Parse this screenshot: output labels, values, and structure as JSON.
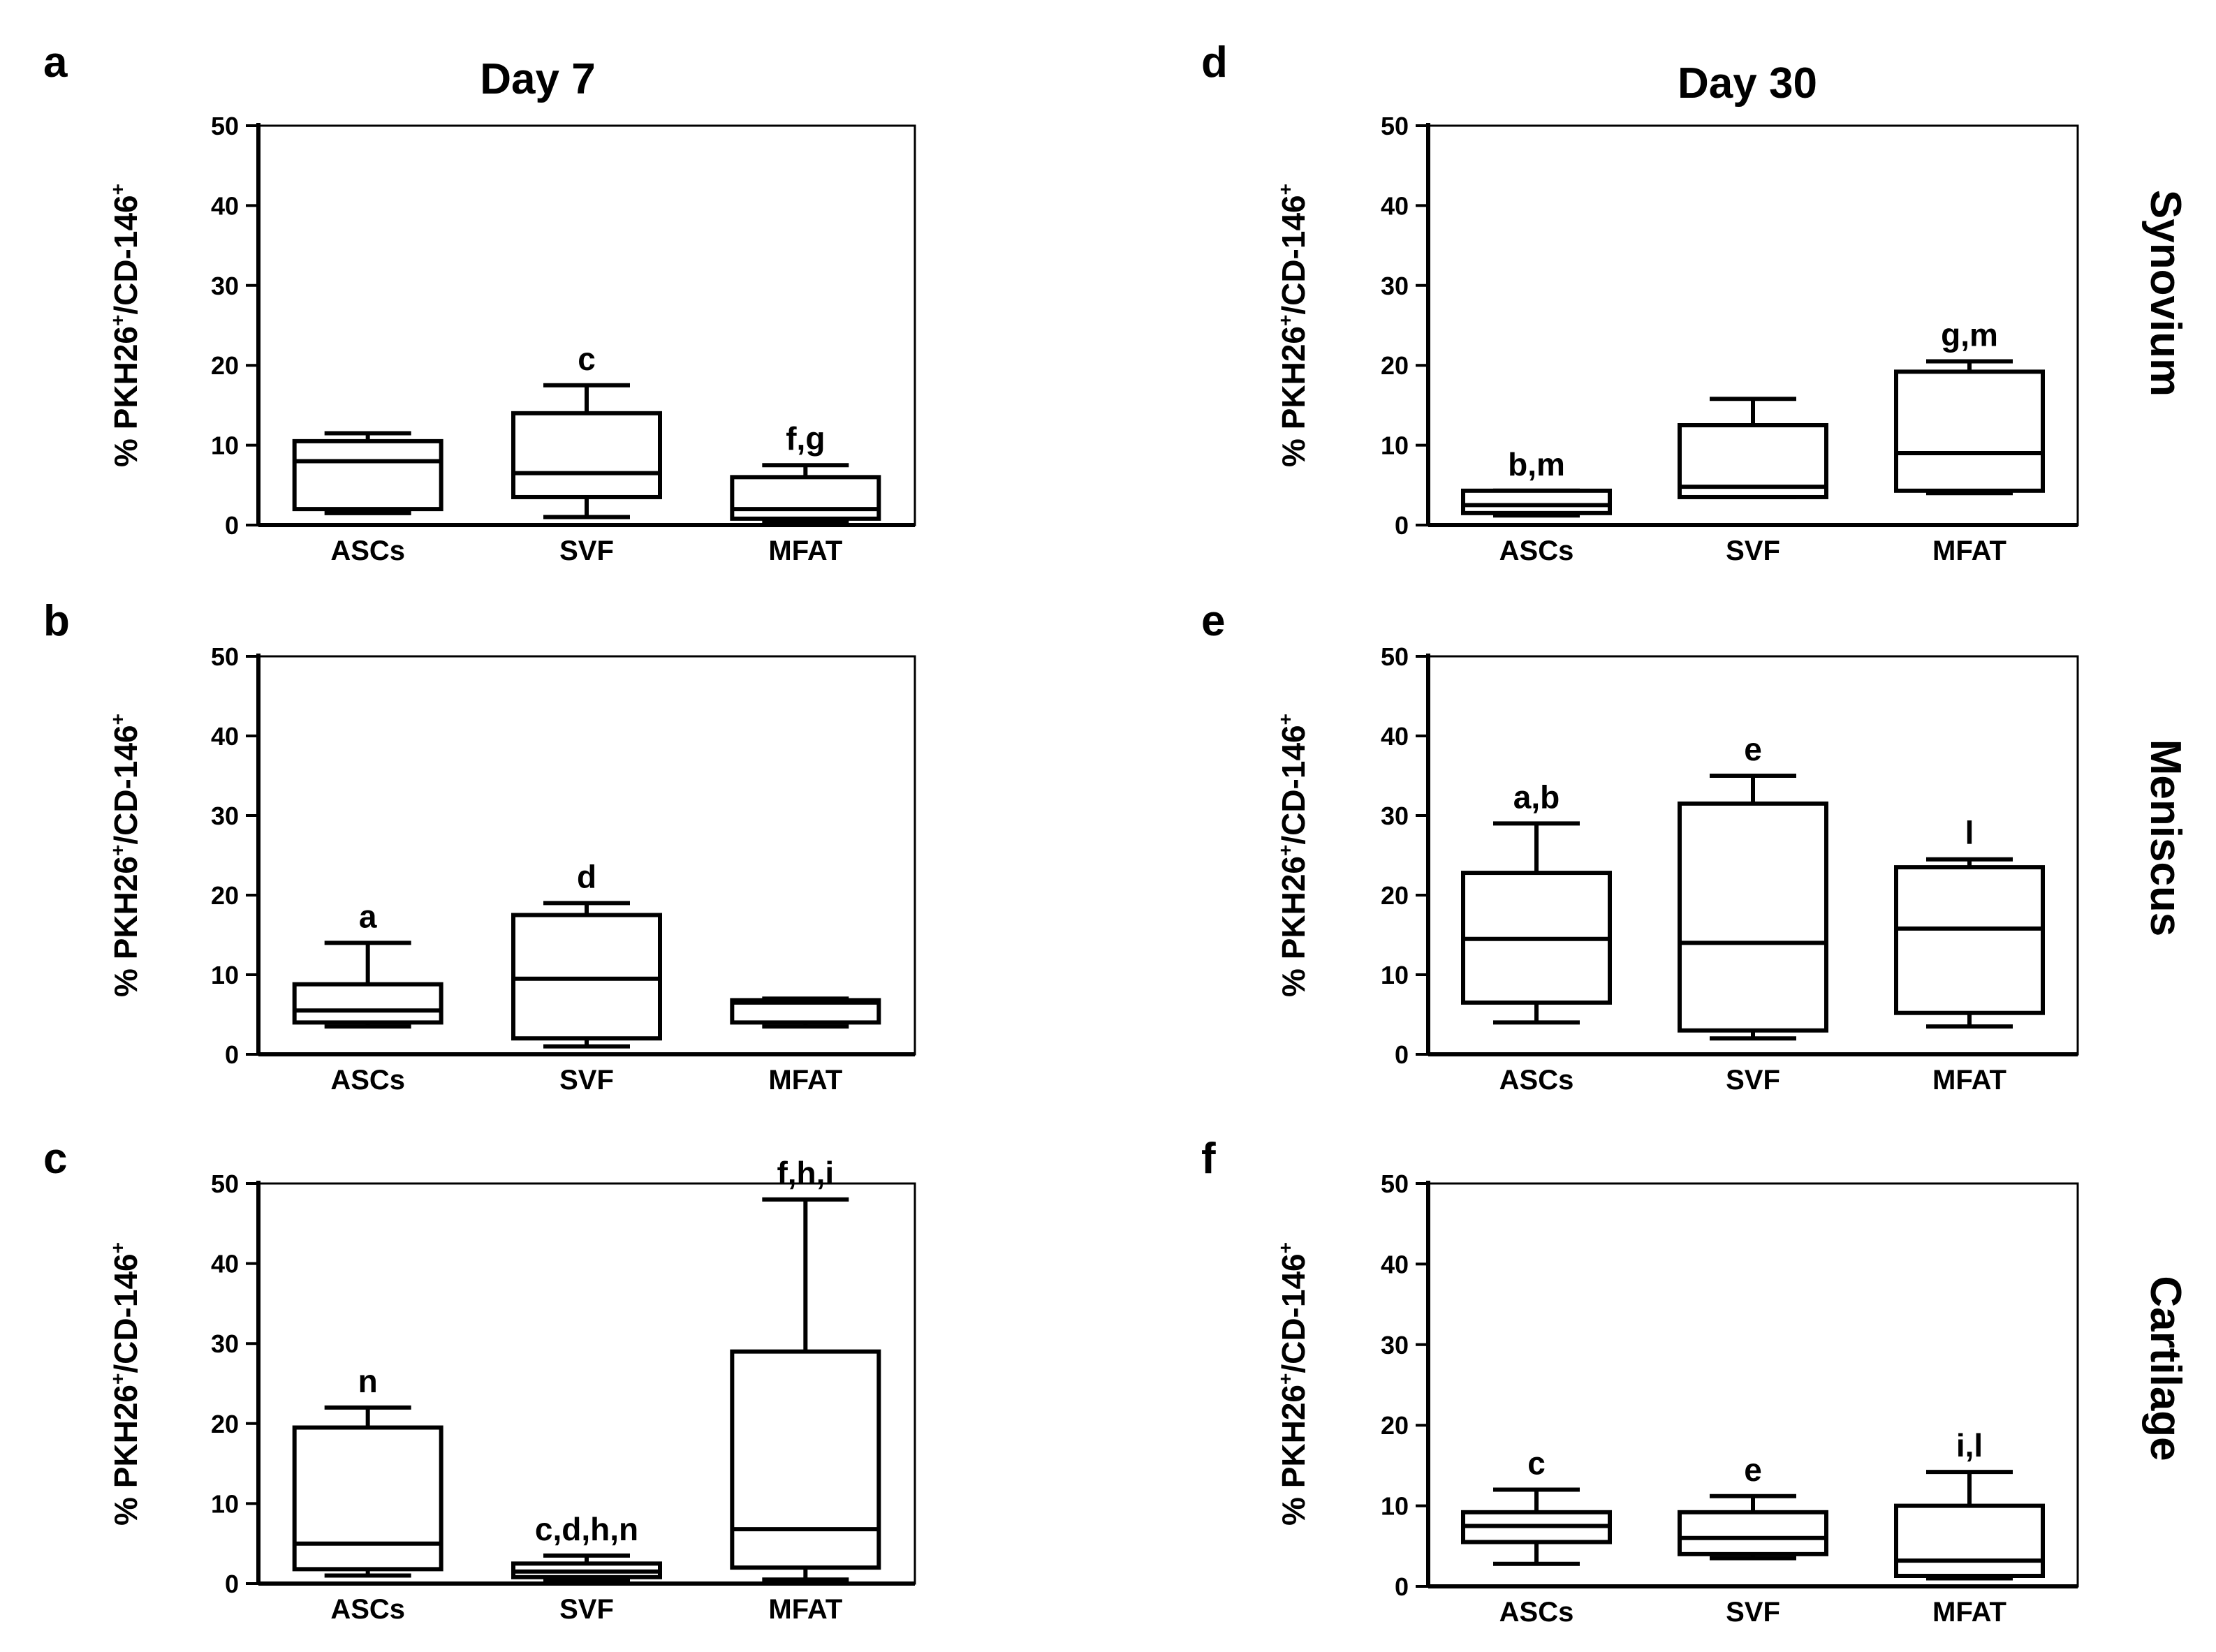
{
  "figure": {
    "column_titles": [
      "Day 7",
      "Day 30"
    ],
    "row_labels": [
      "Synovium",
      "Meniscus",
      "Cartilage"
    ]
  },
  "chart_data": [
    {
      "type": "box",
      "panel": "a",
      "column": "Day 7",
      "tissue": "Synovium",
      "ylabel": "% PKH26+/CD-146+",
      "ylim": [
        0,
        50
      ],
      "yticks": [
        0,
        10,
        20,
        30,
        40,
        50
      ],
      "categories": [
        "ASCs",
        "SVF",
        "MFAT"
      ],
      "boxes": [
        {
          "category": "ASCs",
          "min": 1.5,
          "q1": 2,
          "median": 8,
          "q3": 10.5,
          "max": 11.5,
          "annotation": ""
        },
        {
          "category": "SVF",
          "min": 1,
          "q1": 3.5,
          "median": 6.5,
          "q3": 14,
          "max": 17.5,
          "annotation": "c"
        },
        {
          "category": "MFAT",
          "min": 0.5,
          "q1": 0.8,
          "median": 2,
          "q3": 6,
          "max": 7.5,
          "annotation": "f,g"
        }
      ]
    },
    {
      "type": "box",
      "panel": "b",
      "column": "Day 7",
      "tissue": "Meniscus",
      "ylabel": "% PKH26+/CD-146+",
      "ylim": [
        0,
        50
      ],
      "yticks": [
        0,
        10,
        20,
        30,
        40,
        50
      ],
      "categories": [
        "ASCs",
        "SVF",
        "MFAT"
      ],
      "boxes": [
        {
          "category": "ASCs",
          "min": 3.5,
          "q1": 4,
          "median": 5.5,
          "q3": 8.8,
          "max": 14,
          "annotation": "a"
        },
        {
          "category": "SVF",
          "min": 1,
          "q1": 2,
          "median": 9.5,
          "q3": 17.5,
          "max": 19,
          "annotation": "d"
        },
        {
          "category": "MFAT",
          "min": 3.5,
          "q1": 4,
          "median": 6.5,
          "q3": 6.8,
          "max": 7,
          "annotation": ""
        }
      ]
    },
    {
      "type": "box",
      "panel": "c",
      "column": "Day 7",
      "tissue": "Cartilage",
      "ylabel": "% PKH26+/CD-146+",
      "ylim": [
        0,
        50
      ],
      "yticks": [
        0,
        10,
        20,
        30,
        40,
        50
      ],
      "categories": [
        "ASCs",
        "SVF",
        "MFAT"
      ],
      "boxes": [
        {
          "category": "ASCs",
          "min": 1,
          "q1": 1.8,
          "median": 5,
          "q3": 19.5,
          "max": 22,
          "annotation": "n"
        },
        {
          "category": "SVF",
          "min": 0.5,
          "q1": 0.8,
          "median": 1.5,
          "q3": 2.5,
          "max": 3.5,
          "annotation": "c,d,h,n"
        },
        {
          "category": "MFAT",
          "min": 0.5,
          "q1": 2,
          "median": 6.8,
          "q3": 29,
          "max": 48,
          "annotation": "f,h,i"
        }
      ]
    },
    {
      "type": "box",
      "panel": "d",
      "column": "Day 30",
      "tissue": "Synovium",
      "ylabel": "% PKH26+/CD-146+",
      "ylim": [
        0,
        50
      ],
      "yticks": [
        0,
        10,
        20,
        30,
        40,
        50
      ],
      "categories": [
        "ASCs",
        "SVF",
        "MFAT"
      ],
      "boxes": [
        {
          "category": "ASCs",
          "min": 1.2,
          "q1": 1.5,
          "median": 2.5,
          "q3": 4.3,
          "max": 4.3,
          "annotation": "b,m"
        },
        {
          "category": "SVF",
          "min": 3.5,
          "q1": 3.5,
          "median": 4.8,
          "q3": 12.5,
          "max": 15.8,
          "annotation": ""
        },
        {
          "category": "MFAT",
          "min": 4,
          "q1": 4.3,
          "median": 9,
          "q3": 19.2,
          "max": 20.5,
          "annotation": "g,m"
        }
      ]
    },
    {
      "type": "box",
      "panel": "e",
      "column": "Day 30",
      "tissue": "Meniscus",
      "ylabel": "% PKH26+/CD-146+",
      "ylim": [
        0,
        50
      ],
      "yticks": [
        0,
        10,
        20,
        30,
        40,
        50
      ],
      "categories": [
        "ASCs",
        "SVF",
        "MFAT"
      ],
      "boxes": [
        {
          "category": "ASCs",
          "min": 4,
          "q1": 6.5,
          "median": 14.5,
          "q3": 22.8,
          "max": 29,
          "annotation": "a,b"
        },
        {
          "category": "SVF",
          "min": 2,
          "q1": 3,
          "median": 14,
          "q3": 31.5,
          "max": 35,
          "annotation": "e"
        },
        {
          "category": "MFAT",
          "min": 3.5,
          "q1": 5.2,
          "median": 15.8,
          "q3": 23.5,
          "max": 24.5,
          "annotation": "l"
        }
      ]
    },
    {
      "type": "box",
      "panel": "f",
      "column": "Day 30",
      "tissue": "Cartilage",
      "ylabel": "% PKH26+/CD-146+",
      "ylim": [
        0,
        50
      ],
      "yticks": [
        0,
        10,
        20,
        30,
        40,
        50
      ],
      "categories": [
        "ASCs",
        "SVF",
        "MFAT"
      ],
      "boxes": [
        {
          "category": "ASCs",
          "min": 2.8,
          "q1": 5.5,
          "median": 7.5,
          "q3": 9.2,
          "max": 12,
          "annotation": "c"
        },
        {
          "category": "SVF",
          "min": 3.5,
          "q1": 4,
          "median": 6,
          "q3": 9.2,
          "max": 11.2,
          "annotation": "e"
        },
        {
          "category": "MFAT",
          "min": 1,
          "q1": 1.3,
          "median": 3.2,
          "q3": 10,
          "max": 14.2,
          "annotation": "i,l"
        }
      ]
    }
  ]
}
